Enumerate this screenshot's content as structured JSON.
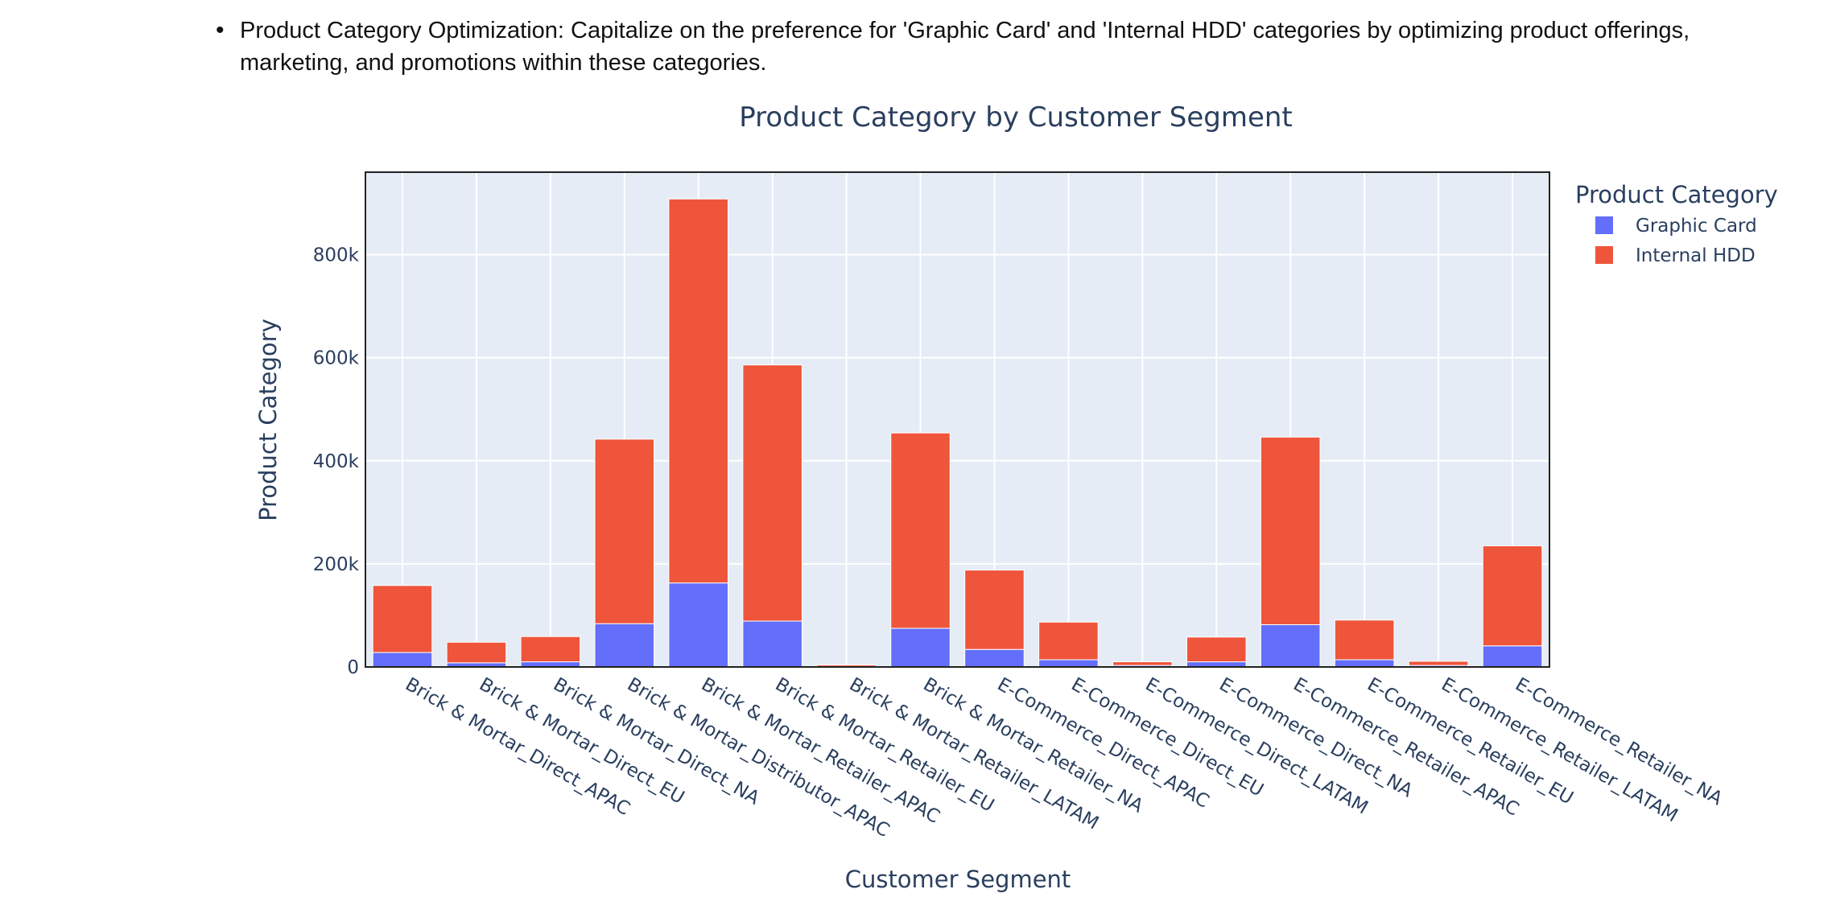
{
  "bullet": {
    "text": "Product Category Optimization: Capitalize on the preference for 'Graphic Card' and 'Internal HDD' categories by optimizing product offerings, marketing, and promotions within these categories."
  },
  "chart_data": {
    "type": "bar",
    "barmode": "stack",
    "title": "Product Category by Customer Segment",
    "xlabel": "Customer Segment",
    "ylabel": "Product Category",
    "ylim": [
      0,
      960000
    ],
    "yticks": [
      0,
      200000,
      400000,
      600000,
      800000
    ],
    "ytick_labels": [
      "0",
      "200k",
      "400k",
      "600k",
      "800k"
    ],
    "grid": true,
    "legend": {
      "title": "Product Category",
      "position": "top-right"
    },
    "categories": [
      "Brick & Mortar_Direct_APAC",
      "Brick & Mortar_Direct_EU",
      "Brick & Mortar_Direct_NA",
      "Brick & Mortar_Distributor_APAC",
      "Brick & Mortar_Retailer_APAC",
      "Brick & Mortar_Retailer_EU",
      "Brick & Mortar_Retailer_LATAM",
      "Brick & Mortar_Retailer_NA",
      "E-Commerce_Direct_APAC",
      "E-Commerce_Direct_EU",
      "E-Commerce_Direct_LATAM",
      "E-Commerce_Direct_NA",
      "E-Commerce_Retailer_APAC",
      "E-Commerce_Retailer_EU",
      "E-Commerce_Retailer_LATAM",
      "E-Commerce_Retailer_NA"
    ],
    "series": [
      {
        "name": "Graphic Card",
        "color": "#636efa",
        "values": [
          28000,
          8000,
          10000,
          84000,
          163000,
          89000,
          1000,
          75000,
          34000,
          14000,
          3000,
          10000,
          82000,
          14000,
          3000,
          41000
        ]
      },
      {
        "name": "Internal HDD",
        "color": "#ef553b",
        "values": [
          130000,
          40000,
          49000,
          358000,
          745000,
          497000,
          3000,
          379000,
          154000,
          73000,
          7000,
          48000,
          364000,
          77000,
          8000,
          194000
        ]
      }
    ],
    "colors": {
      "plot_bg": "#e5ecf6",
      "grid": "#ffffff",
      "text": "#2a3f5f",
      "frame": "#222222"
    }
  }
}
